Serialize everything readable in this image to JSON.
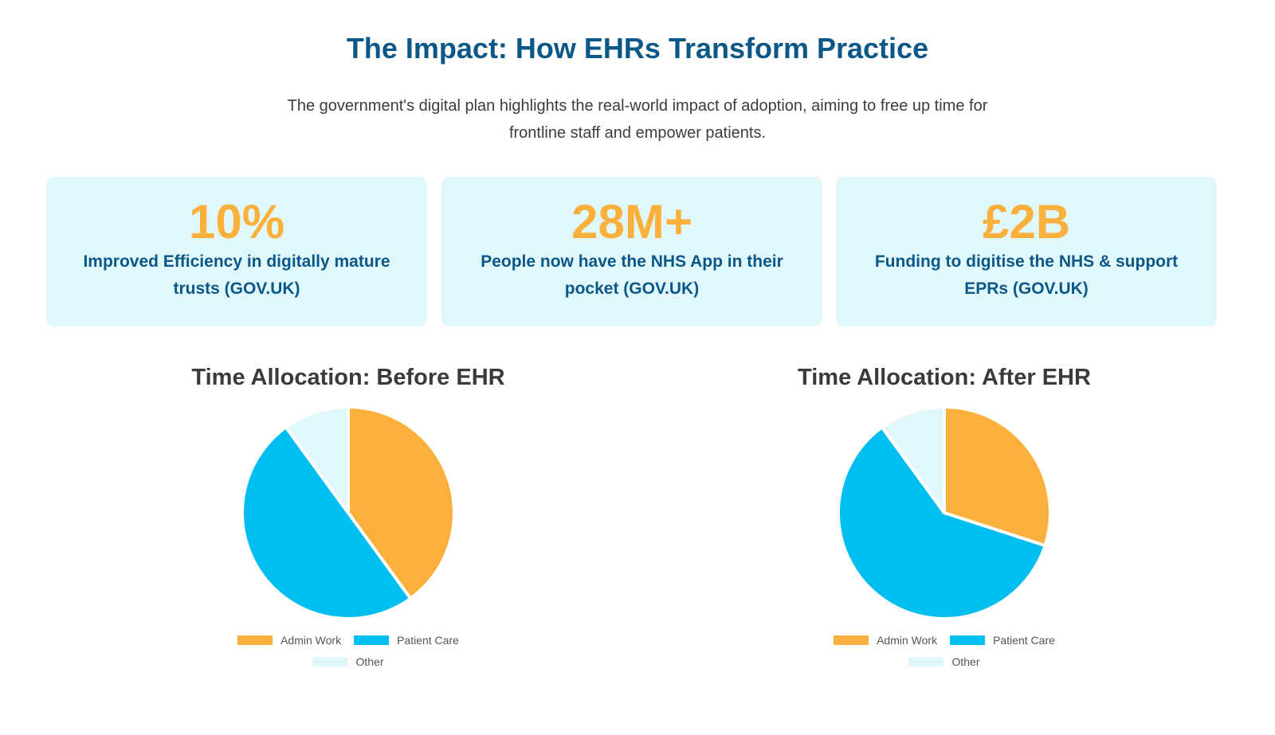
{
  "header": {
    "title": "The Impact: How EHRs Transform Practice",
    "intro": "The government's digital plan highlights the real-world impact of adoption, aiming to free up time for frontline staff and empower patients."
  },
  "stats": [
    {
      "value": "10%",
      "label": "Improved Efficiency in digitally mature trusts (GOV.UK)"
    },
    {
      "value": "28M+",
      "label": "People now have the NHS App in their pocket (GOV.UK)"
    },
    {
      "value": "£2B",
      "label": "Funding to digitise the NHS & support EPRs (GOV.UK)"
    }
  ],
  "colors": {
    "admin": "#fbb03b",
    "patient": "#00bff0",
    "other": "#e0f7fc",
    "accent": "#0b5787"
  },
  "chart_data": [
    {
      "type": "pie",
      "title": "Time Allocation: Before EHR",
      "categories": [
        "Admin Work",
        "Patient Care",
        "Other"
      ],
      "values": [
        40,
        50,
        10
      ],
      "legend": "bottom"
    },
    {
      "type": "pie",
      "title": "Time Allocation: After EHR",
      "categories": [
        "Admin Work",
        "Patient Care",
        "Other"
      ],
      "values": [
        30,
        60,
        10
      ],
      "legend": "bottom"
    }
  ]
}
